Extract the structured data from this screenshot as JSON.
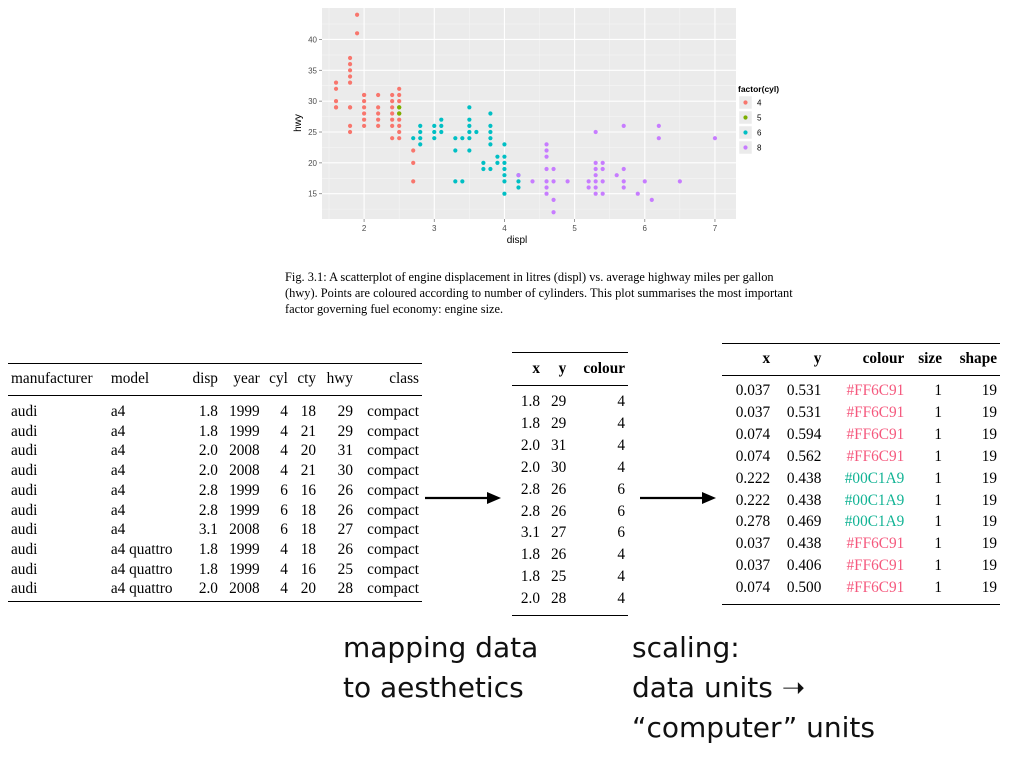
{
  "colors": {
    "cyl4": "#F8766D",
    "cyl5": "#7CAE00",
    "cyl6": "#00BFC4",
    "cyl8": "#C77CFF",
    "scaled_red": "#F5587D",
    "scaled_green": "#11B394"
  },
  "chart_data": {
    "type": "scatter",
    "title": "",
    "xlabel": "displ",
    "ylabel": "hwy",
    "xlim": [
      1.4,
      7.3
    ],
    "ylim": [
      10.9,
      45.1
    ],
    "xticks": [
      2,
      3,
      4,
      5,
      6,
      7
    ],
    "yticks": [
      15,
      20,
      25,
      30,
      35,
      40
    ],
    "grid": true,
    "legend": {
      "title": "factor(cyl)",
      "position": "right"
    },
    "series": [
      {
        "name": "4",
        "color": "#F8766D",
        "points": [
          [
            1.6,
            29
          ],
          [
            1.6,
            29
          ],
          [
            1.6,
            33
          ],
          [
            1.6,
            32
          ],
          [
            1.6,
            30
          ],
          [
            1.8,
            26
          ],
          [
            1.8,
            25
          ],
          [
            1.8,
            29
          ],
          [
            1.8,
            29
          ],
          [
            1.8,
            33
          ],
          [
            1.8,
            35
          ],
          [
            1.8,
            36
          ],
          [
            1.8,
            37
          ],
          [
            1.8,
            34
          ],
          [
            1.9,
            44
          ],
          [
            1.9,
            41
          ],
          [
            2.0,
            31
          ],
          [
            2.0,
            30
          ],
          [
            2.0,
            29
          ],
          [
            2.0,
            28
          ],
          [
            2.0,
            26
          ],
          [
            2.0,
            27
          ],
          [
            2.0,
            31
          ],
          [
            2.2,
            26
          ],
          [
            2.2,
            27
          ],
          [
            2.2,
            29
          ],
          [
            2.2,
            28
          ],
          [
            2.2,
            31
          ],
          [
            2.4,
            31
          ],
          [
            2.4,
            30
          ],
          [
            2.4,
            27
          ],
          [
            2.4,
            28
          ],
          [
            2.4,
            29
          ],
          [
            2.4,
            26
          ],
          [
            2.4,
            24
          ],
          [
            2.5,
            24
          ],
          [
            2.5,
            25
          ],
          [
            2.5,
            26
          ],
          [
            2.5,
            27
          ],
          [
            2.5,
            28
          ],
          [
            2.5,
            30
          ],
          [
            2.5,
            31
          ],
          [
            2.5,
            32
          ],
          [
            2.7,
            22
          ],
          [
            2.7,
            20
          ],
          [
            2.7,
            17
          ]
        ]
      },
      {
        "name": "5",
        "color": "#7CAE00",
        "points": [
          [
            2.5,
            28
          ],
          [
            2.5,
            29
          ],
          [
            2.5,
            28
          ],
          [
            2.5,
            29
          ]
        ]
      },
      {
        "name": "6",
        "color": "#00BFC4",
        "points": [
          [
            2.7,
            24
          ],
          [
            2.8,
            26
          ],
          [
            2.8,
            25
          ],
          [
            2.8,
            24
          ],
          [
            2.8,
            23
          ],
          [
            3.0,
            26
          ],
          [
            3.0,
            25
          ],
          [
            3.0,
            24
          ],
          [
            3.1,
            25
          ],
          [
            3.1,
            27
          ],
          [
            3.1,
            26
          ],
          [
            3.3,
            24
          ],
          [
            3.3,
            22
          ],
          [
            3.3,
            17
          ],
          [
            3.4,
            17
          ],
          [
            3.4,
            24
          ],
          [
            3.5,
            29
          ],
          [
            3.5,
            27
          ],
          [
            3.5,
            26
          ],
          [
            3.5,
            25
          ],
          [
            3.5,
            24
          ],
          [
            3.5,
            22
          ],
          [
            3.6,
            25
          ],
          [
            3.7,
            19
          ],
          [
            3.7,
            20
          ],
          [
            3.8,
            28
          ],
          [
            3.8,
            26
          ],
          [
            3.8,
            25
          ],
          [
            3.8,
            24
          ],
          [
            3.8,
            23
          ],
          [
            3.8,
            19
          ],
          [
            3.9,
            21
          ],
          [
            3.9,
            20
          ],
          [
            4.0,
            23
          ],
          [
            4.0,
            21
          ],
          [
            4.0,
            20
          ],
          [
            4.0,
            19
          ],
          [
            4.0,
            18
          ],
          [
            4.0,
            17
          ],
          [
            4.0,
            15
          ],
          [
            4.2,
            18
          ],
          [
            4.2,
            17
          ],
          [
            4.2,
            16
          ]
        ]
      },
      {
        "name": "8",
        "color": "#C77CFF",
        "points": [
          [
            4.2,
            18
          ],
          [
            4.4,
            17
          ],
          [
            4.6,
            23
          ],
          [
            4.6,
            22
          ],
          [
            4.6,
            21
          ],
          [
            4.6,
            19
          ],
          [
            4.6,
            17
          ],
          [
            4.6,
            16
          ],
          [
            4.6,
            15
          ],
          [
            4.7,
            14
          ],
          [
            4.7,
            12
          ],
          [
            4.7,
            17
          ],
          [
            4.7,
            19
          ],
          [
            4.9,
            17
          ],
          [
            5.2,
            17
          ],
          [
            5.2,
            16
          ],
          [
            5.3,
            25
          ],
          [
            5.3,
            20
          ],
          [
            5.3,
            19
          ],
          [
            5.3,
            18
          ],
          [
            5.3,
            17
          ],
          [
            5.3,
            16
          ],
          [
            5.3,
            15
          ],
          [
            5.4,
            20
          ],
          [
            5.4,
            19
          ],
          [
            5.4,
            17
          ],
          [
            5.4,
            15
          ],
          [
            5.6,
            18
          ],
          [
            5.7,
            26
          ],
          [
            5.7,
            19
          ],
          [
            5.7,
            17
          ],
          [
            5.7,
            16
          ],
          [
            5.9,
            15
          ],
          [
            6.0,
            17
          ],
          [
            6.1,
            14
          ],
          [
            6.2,
            26
          ],
          [
            6.2,
            24
          ],
          [
            6.5,
            17
          ],
          [
            7.0,
            24
          ]
        ]
      }
    ]
  },
  "caption": "Fig. 3.1: A scatterplot of engine displacement in litres (displ) vs. average highway miles per gallon (hwy). Points are coloured according to number of cylinders. This plot summarises the most important factor governing fuel economy: engine size.",
  "raw_table": {
    "headers": [
      "manufacturer",
      "model",
      "disp",
      "year",
      "cyl",
      "cty",
      "hwy",
      "class"
    ],
    "rows": [
      [
        "audi",
        "a4",
        "1.8",
        "1999",
        "4",
        "18",
        "29",
        "compact"
      ],
      [
        "audi",
        "a4",
        "1.8",
        "1999",
        "4",
        "21",
        "29",
        "compact"
      ],
      [
        "audi",
        "a4",
        "2.0",
        "2008",
        "4",
        "20",
        "31",
        "compact"
      ],
      [
        "audi",
        "a4",
        "2.0",
        "2008",
        "4",
        "21",
        "30",
        "compact"
      ],
      [
        "audi",
        "a4",
        "2.8",
        "1999",
        "6",
        "16",
        "26",
        "compact"
      ],
      [
        "audi",
        "a4",
        "2.8",
        "1999",
        "6",
        "18",
        "26",
        "compact"
      ],
      [
        "audi",
        "a4",
        "3.1",
        "2008",
        "6",
        "18",
        "27",
        "compact"
      ],
      [
        "audi",
        "a4 quattro",
        "1.8",
        "1999",
        "4",
        "18",
        "26",
        "compact"
      ],
      [
        "audi",
        "a4 quattro",
        "1.8",
        "1999",
        "4",
        "16",
        "25",
        "compact"
      ],
      [
        "audi",
        "a4 quattro",
        "2.0",
        "2008",
        "4",
        "20",
        "28",
        "compact"
      ]
    ]
  },
  "mapped_table": {
    "headers": [
      "x",
      "y",
      "colour"
    ],
    "rows": [
      [
        "1.8",
        "29",
        "4"
      ],
      [
        "1.8",
        "29",
        "4"
      ],
      [
        "2.0",
        "31",
        "4"
      ],
      [
        "2.0",
        "30",
        "4"
      ],
      [
        "2.8",
        "26",
        "6"
      ],
      [
        "2.8",
        "26",
        "6"
      ],
      [
        "3.1",
        "27",
        "6"
      ],
      [
        "1.8",
        "26",
        "4"
      ],
      [
        "1.8",
        "25",
        "4"
      ],
      [
        "2.0",
        "28",
        "4"
      ]
    ]
  },
  "scaled_table": {
    "headers": [
      "x",
      "y",
      "colour",
      "size",
      "shape"
    ],
    "rows": [
      [
        "0.037",
        "0.531",
        "#FF6C91",
        "1",
        "19"
      ],
      [
        "0.037",
        "0.531",
        "#FF6C91",
        "1",
        "19"
      ],
      [
        "0.074",
        "0.594",
        "#FF6C91",
        "1",
        "19"
      ],
      [
        "0.074",
        "0.562",
        "#FF6C91",
        "1",
        "19"
      ],
      [
        "0.222",
        "0.438",
        "#00C1A9",
        "1",
        "19"
      ],
      [
        "0.222",
        "0.438",
        "#00C1A9",
        "1",
        "19"
      ],
      [
        "0.278",
        "0.469",
        "#00C1A9",
        "1",
        "19"
      ],
      [
        "0.037",
        "0.438",
        "#FF6C91",
        "1",
        "19"
      ],
      [
        "0.037",
        "0.406",
        "#FF6C91",
        "1",
        "19"
      ],
      [
        "0.074",
        "0.500",
        "#FF6C91",
        "1",
        "19"
      ]
    ]
  },
  "labels": {
    "mapping": [
      "mapping data",
      "to aesthetics"
    ],
    "scaling": [
      "scaling:",
      "data units ➝",
      "“computer” units"
    ]
  }
}
